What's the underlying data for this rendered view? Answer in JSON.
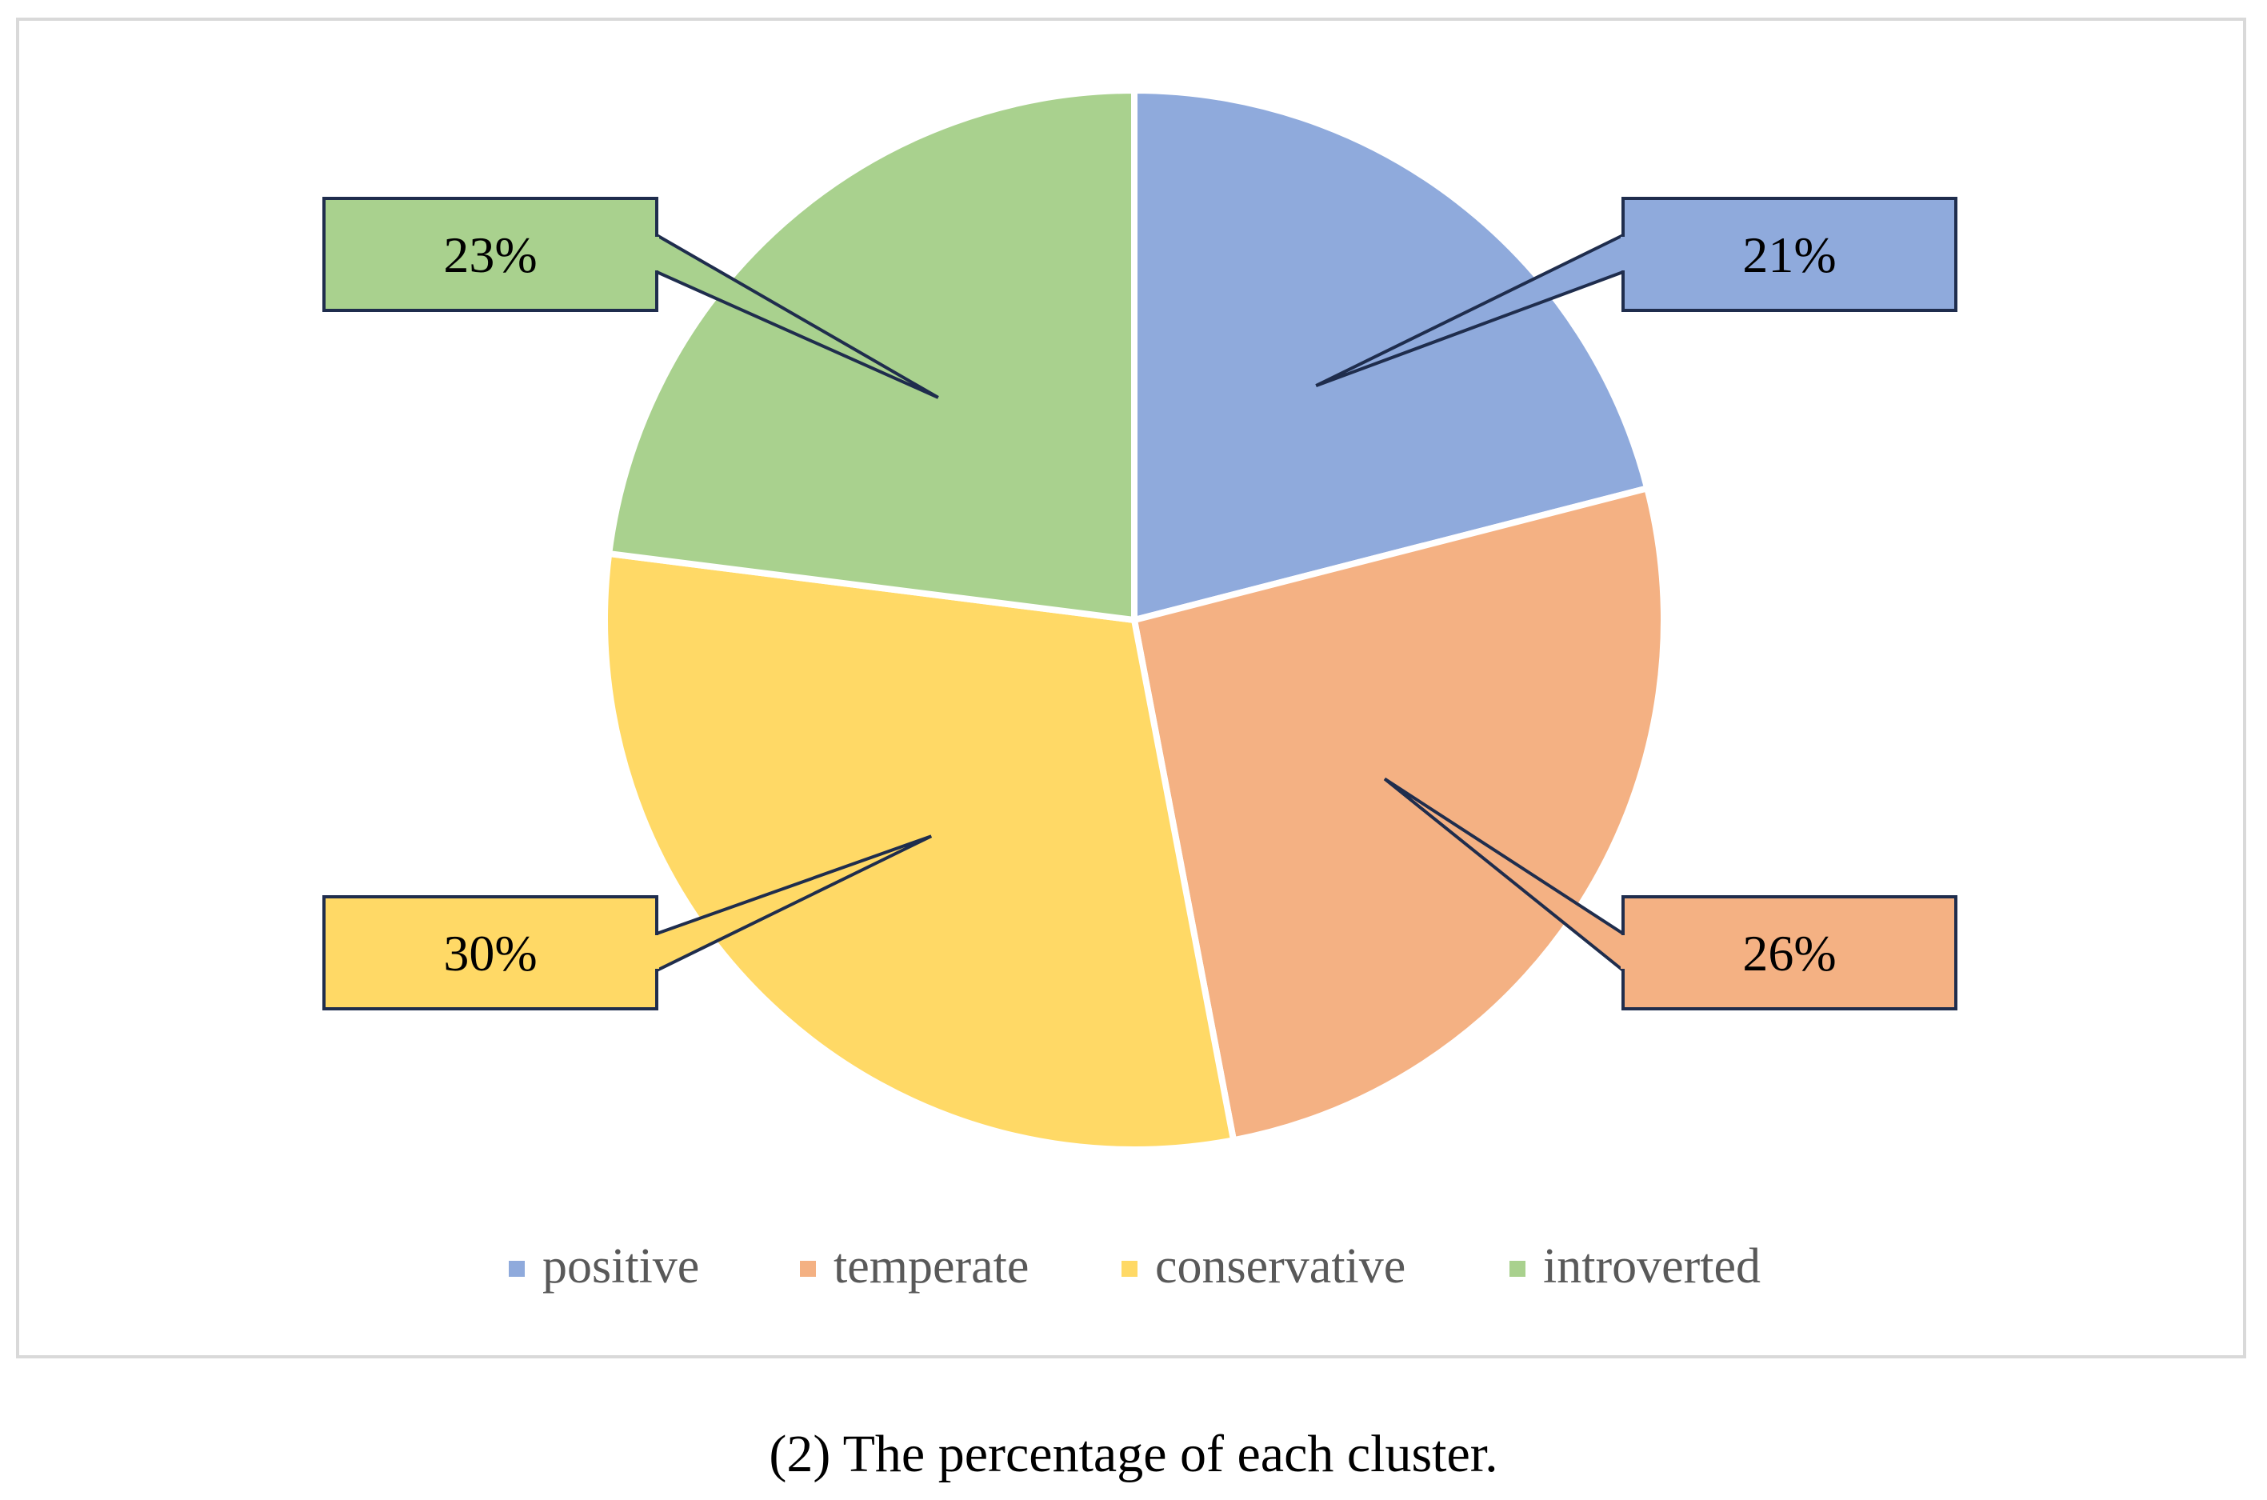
{
  "caption": "(2) The percentage of each cluster.",
  "chart_data": {
    "type": "pie",
    "title": "",
    "start_angle_deg": 0,
    "direction": "clockwise",
    "slices": [
      {
        "name": "positive",
        "value": 21,
        "label": "21%",
        "color": "#8FAADC",
        "label_color": "#8FAADC"
      },
      {
        "name": "temperate",
        "value": 26,
        "label": "26%",
        "color": "#F4B183",
        "label_color": "#F4B183"
      },
      {
        "name": "conservative",
        "value": 30,
        "label": "30%",
        "color": "#FFD966",
        "label_color": "#FFD966"
      },
      {
        "name": "introverted",
        "value": 23,
        "label": "23%",
        "color": "#A9D18E",
        "label_color": "#A9D18E"
      }
    ],
    "data_labels": "callouts",
    "legend_position": "bottom"
  }
}
